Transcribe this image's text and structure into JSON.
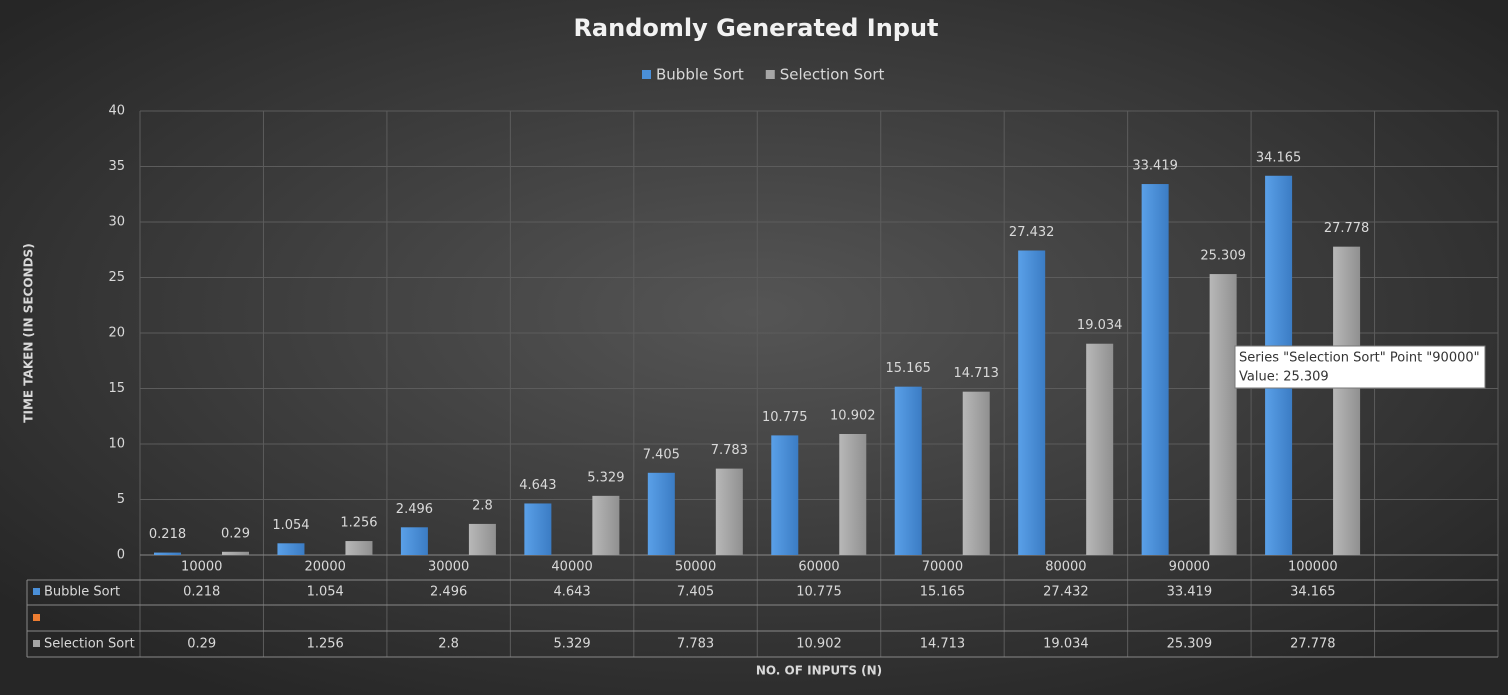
{
  "chart_data": {
    "type": "bar",
    "title": "Randomly Generated Input",
    "xlabel": "NO. OF INPUTS (N)",
    "ylabel": "TIME TAKEN (IN SECONDS)",
    "categories": [
      "10000",
      "20000",
      "30000",
      "40000",
      "50000",
      "60000",
      "70000",
      "80000",
      "90000",
      "100000",
      null
    ],
    "series": [
      {
        "name": "Bubble Sort",
        "color": "#4a8fd8",
        "values": [
          0.218,
          1.054,
          2.496,
          4.643,
          7.405,
          10.775,
          15.165,
          27.432,
          33.419,
          34.165,
          null
        ]
      },
      {
        "name": "Selection Sort",
        "color": "#a6a6a6",
        "values": [
          0.29,
          1.256,
          2.8,
          5.329,
          7.783,
          10.902,
          14.713,
          19.034,
          25.309,
          27.778,
          null
        ]
      }
    ],
    "ylim": [
      0,
      40
    ],
    "yticks": [
      0,
      5,
      10,
      15,
      20,
      25,
      30,
      35,
      40
    ],
    "grid": true,
    "legend": "top",
    "tooltip": [
      "Series \"Selection Sort\" Point \"90000\"",
      "Value: 25.309"
    ]
  }
}
